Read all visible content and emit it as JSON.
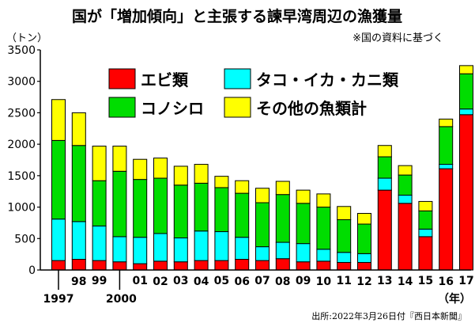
{
  "chart_data": {
    "type": "bar",
    "stacked": true,
    "title": "国が「増加傾向」と主張する諫早湾周辺の漁獲量",
    "note": "※国の資料に基づく",
    "y_unit": "（トン）",
    "x_unit": "（年）",
    "source": "出所:2022年3月26日付『西日本新聞』",
    "ylim": [
      0,
      3500
    ],
    "yticks": [
      0,
      500,
      1000,
      1500,
      2000,
      2500,
      3000,
      3500
    ],
    "grid": false,
    "legend_position": "top",
    "categories": [
      "1997",
      "98",
      "99",
      "2000",
      "01",
      "02",
      "03",
      "04",
      "05",
      "06",
      "07",
      "08",
      "09",
      "10",
      "11",
      "12",
      "13",
      "14",
      "15",
      "16",
      "17"
    ],
    "x_tick_labels": [
      "1997",
      "98",
      "99",
      "2000",
      "01",
      "02",
      "03",
      "04",
      "05",
      "06",
      "07",
      "08",
      "09",
      "10",
      "11",
      "12",
      "13",
      "14",
      "15",
      "16",
      "17"
    ],
    "series": [
      {
        "name": "エビ類",
        "color": "#ff0000",
        "values": [
          150,
          170,
          150,
          130,
          100,
          140,
          130,
          150,
          150,
          170,
          150,
          180,
          130,
          140,
          120,
          120,
          1270,
          1060,
          530,
          1610,
          2470
        ]
      },
      {
        "name": "タコ・イカ・カニ類",
        "color": "#00ffff",
        "values": [
          660,
          600,
          550,
          400,
          420,
          440,
          380,
          470,
          460,
          350,
          220,
          260,
          290,
          190,
          160,
          140,
          190,
          130,
          120,
          70,
          90
        ]
      },
      {
        "name": "コノシロ",
        "color": "#00dd00",
        "values": [
          1250,
          1210,
          720,
          1040,
          920,
          880,
          840,
          760,
          700,
          700,
          700,
          760,
          640,
          670,
          520,
          470,
          340,
          320,
          290,
          600,
          560
        ]
      },
      {
        "name": "その他の魚類計",
        "color": "#ffff00",
        "values": [
          650,
          520,
          550,
          400,
          320,
          320,
          300,
          300,
          180,
          200,
          230,
          210,
          210,
          210,
          210,
          170,
          180,
          150,
          150,
          120,
          130
        ]
      }
    ]
  }
}
